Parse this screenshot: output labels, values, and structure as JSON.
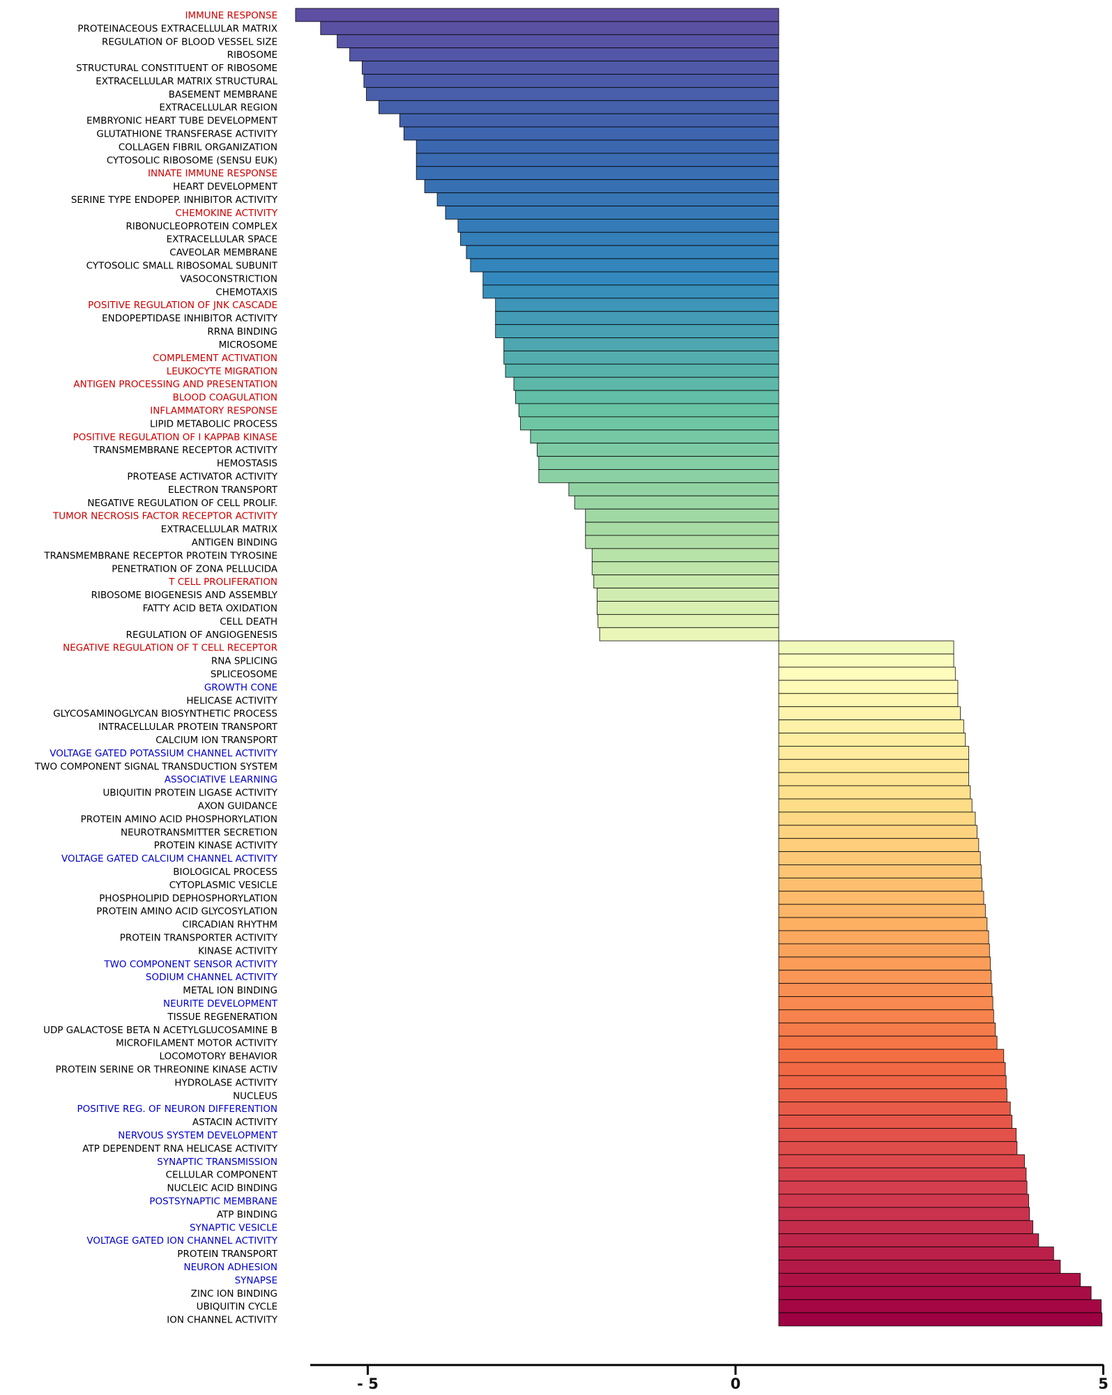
{
  "chart_data": {
    "type": "bar",
    "orientation": "horizontal",
    "xlim": [
      -5.6,
      5
    ],
    "xticks": [
      -5,
      0,
      5
    ],
    "xtick_labels": [
      "- 5",
      "0",
      "5"
    ],
    "title": "",
    "xlabel": "",
    "ylabel": "",
    "grid": false,
    "label_colors": {
      "default": "#000000",
      "immune": "#cc0000",
      "neuro": "#0000cc"
    },
    "categories": [
      {
        "label": "IMMUNE RESPONSE",
        "value": -5.8,
        "group": "immune"
      },
      {
        "label": "PROTEINACEOUS EXTRACELLULAR MATRIX",
        "value": -5.5,
        "group": "default"
      },
      {
        "label": "REGULATION OF BLOOD VESSEL SIZE",
        "value": -5.3,
        "group": "default"
      },
      {
        "label": "RIBOSOME",
        "value": -5.15,
        "group": "default"
      },
      {
        "label": "STRUCTURAL CONSTITUENT OF RIBOSOME",
        "value": -5.0,
        "group": "default"
      },
      {
        "label": "EXTRACELLULAR MATRIX STRUCTURAL",
        "value": -4.98,
        "group": "default"
      },
      {
        "label": "BASEMENT MEMBRANE",
        "value": -4.95,
        "group": "default"
      },
      {
        "label": "EXTRACELLULAR REGION",
        "value": -4.8,
        "group": "default"
      },
      {
        "label": "EMBRYONIC HEART TUBE DEVELOPMENT",
        "value": -4.55,
        "group": "default"
      },
      {
        "label": "GLUTATHIONE TRANSFERASE ACTIVITY",
        "value": -4.5,
        "group": "default"
      },
      {
        "label": "COLLAGEN FIBRIL ORGANIZATION",
        "value": -4.35,
        "group": "default"
      },
      {
        "label": "CYTOSOLIC RIBOSOME (SENSU EUK)",
        "value": -4.35,
        "group": "default"
      },
      {
        "label": "INNATE IMMUNE RESPONSE",
        "value": -4.35,
        "group": "immune"
      },
      {
        "label": "HEART DEVELOPMENT",
        "value": -4.25,
        "group": "default"
      },
      {
        "label": "SERINE TYPE ENDOPEP. INHIBITOR ACTIVITY",
        "value": -4.1,
        "group": "default"
      },
      {
        "label": "CHEMOKINE ACTIVITY",
        "value": -4.0,
        "group": "immune"
      },
      {
        "label": "RIBONUCLEOPROTEIN COMPLEX",
        "value": -3.85,
        "group": "default"
      },
      {
        "label": "EXTRACELLULAR SPACE",
        "value": -3.82,
        "group": "default"
      },
      {
        "label": "CAVEOLAR MEMBRANE",
        "value": -3.75,
        "group": "default"
      },
      {
        "label": "CYTOSOLIC SMALL RIBOSOMAL SUBUNIT",
        "value": -3.7,
        "group": "default"
      },
      {
        "label": "VASOCONSTRICTION",
        "value": -3.55,
        "group": "default"
      },
      {
        "label": "CHEMOTAXIS",
        "value": -3.55,
        "group": "default"
      },
      {
        "label": "POSITIVE REGULATION OF JNK CASCADE",
        "value": -3.4,
        "group": "immune"
      },
      {
        "label": "ENDOPEPTIDASE INHIBITOR ACTIVITY",
        "value": -3.4,
        "group": "default"
      },
      {
        "label": "RRNA BINDING",
        "value": -3.4,
        "group": "default"
      },
      {
        "label": "MICROSOME",
        "value": -3.3,
        "group": "default"
      },
      {
        "label": "COMPLEMENT ACTIVATION",
        "value": -3.3,
        "group": "immune"
      },
      {
        "label": "LEUKOCYTE MIGRATION",
        "value": -3.28,
        "group": "immune"
      },
      {
        "label": "ANTIGEN PROCESSING AND PRESENTATION",
        "value": -3.18,
        "group": "immune"
      },
      {
        "label": "BLOOD COAGULATION",
        "value": -3.16,
        "group": "immune"
      },
      {
        "label": "INFLAMMATORY RESPONSE",
        "value": -3.12,
        "group": "immune"
      },
      {
        "label": "LIPID METABOLIC PROCESS",
        "value": -3.1,
        "group": "default"
      },
      {
        "label": "POSITIVE REGULATION OF I KAPPAB KINASE",
        "value": -2.98,
        "group": "immune"
      },
      {
        "label": "TRANSMEMBRANE RECEPTOR ACTIVITY",
        "value": -2.9,
        "group": "default"
      },
      {
        "label": "HEMOSTASIS",
        "value": -2.88,
        "group": "default"
      },
      {
        "label": "PROTEASE ACTIVATOR ACTIVITY",
        "value": -2.88,
        "group": "default"
      },
      {
        "label": "ELECTRON TRANSPORT",
        "value": -2.52,
        "group": "default"
      },
      {
        "label": "NEGATIVE REGULATION OF CELL PROLIF.",
        "value": -2.45,
        "group": "default"
      },
      {
        "label": "TUMOR NECROSIS FACTOR RECEPTOR ACTIVITY",
        "value": -2.32,
        "group": "immune"
      },
      {
        "label": "EXTRACELLULAR MATRIX",
        "value": -2.32,
        "group": "default"
      },
      {
        "label": "ANTIGEN BINDING",
        "value": -2.32,
        "group": "default"
      },
      {
        "label": "TRANSMEMBRANE RECEPTOR PROTEIN TYROSINE",
        "value": -2.24,
        "group": "default"
      },
      {
        "label": "PENETRATION OF ZONA PELLUCIDA",
        "value": -2.24,
        "group": "default"
      },
      {
        "label": "T CELL PROLIFERATION",
        "value": -2.22,
        "group": "immune"
      },
      {
        "label": "RIBOSOME BIOGENESIS AND ASSEMBLY",
        "value": -2.18,
        "group": "default"
      },
      {
        "label": "FATTY ACID BETA OXIDATION",
        "value": -2.18,
        "group": "default"
      },
      {
        "label": "CELL DEATH",
        "value": -2.17,
        "group": "default"
      },
      {
        "label": "REGULATION OF ANGIOGENESIS",
        "value": -2.15,
        "group": "default"
      },
      {
        "label": "NEGATIVE REGULATION OF T CELL RECEPTOR",
        "value": 2.1,
        "group": "immune"
      },
      {
        "label": "RNA SPLICING",
        "value": 2.1,
        "group": "default"
      },
      {
        "label": "SPLICEOSOME",
        "value": 2.12,
        "group": "default"
      },
      {
        "label": "GROWTH CONE",
        "value": 2.15,
        "group": "neuro"
      },
      {
        "label": "HELICASE ACTIVITY",
        "value": 2.15,
        "group": "default"
      },
      {
        "label": "GLYCOSAMINOGLYCAN BIOSYNTHETIC PROCESS",
        "value": 2.18,
        "group": "default"
      },
      {
        "label": "INTRACELLULAR PROTEIN TRANSPORT",
        "value": 2.22,
        "group": "default"
      },
      {
        "label": "CALCIUM ION TRANSPORT",
        "value": 2.24,
        "group": "default"
      },
      {
        "label": "VOLTAGE GATED POTASSIUM CHANNEL ACTIVITY",
        "value": 2.28,
        "group": "neuro"
      },
      {
        "label": "TWO COMPONENT SIGNAL TRANSDUCTION SYSTEM",
        "value": 2.28,
        "group": "default"
      },
      {
        "label": "ASSOCIATIVE LEARNING",
        "value": 2.28,
        "group": "neuro"
      },
      {
        "label": "UBIQUITIN PROTEIN LIGASE ACTIVITY",
        "value": 2.3,
        "group": "default"
      },
      {
        "label": "AXON GUIDANCE",
        "value": 2.32,
        "group": "default"
      },
      {
        "label": "PROTEIN AMINO ACID PHOSPHORYLATION",
        "value": 2.36,
        "group": "default"
      },
      {
        "label": "NEUROTRANSMITTER SECRETION",
        "value": 2.38,
        "group": "default"
      },
      {
        "label": "PROTEIN KINASE ACTIVITY",
        "value": 2.4,
        "group": "default"
      },
      {
        "label": "VOLTAGE GATED CALCIUM CHANNEL ACTIVITY",
        "value": 2.42,
        "group": "neuro"
      },
      {
        "label": "BIOLOGICAL PROCESS",
        "value": 2.43,
        "group": "default"
      },
      {
        "label": "CYTOPLASMIC VESICLE",
        "value": 2.44,
        "group": "default"
      },
      {
        "label": "PHOSPHOLIPID DEPHOSPHORYLATION",
        "value": 2.46,
        "group": "default"
      },
      {
        "label": "PROTEIN AMINO ACID GLYCOSYLATION",
        "value": 2.48,
        "group": "default"
      },
      {
        "label": "CIRCADIAN RHYTHM",
        "value": 2.5,
        "group": "default"
      },
      {
        "label": "PROTEIN TRANSPORTER ACTIVITY",
        "value": 2.52,
        "group": "default"
      },
      {
        "label": "KINASE ACTIVITY",
        "value": 2.53,
        "group": "default"
      },
      {
        "label": "TWO COMPONENT SENSOR ACTIVITY",
        "value": 2.54,
        "group": "neuro"
      },
      {
        "label": "SODIUM CHANNEL ACTIVITY",
        "value": 2.55,
        "group": "neuro"
      },
      {
        "label": "METAL ION BINDING",
        "value": 2.56,
        "group": "default"
      },
      {
        "label": "NEURITE DEVELOPMENT",
        "value": 2.57,
        "group": "neuro"
      },
      {
        "label": "TISSUE REGENERATION",
        "value": 2.58,
        "group": "default"
      },
      {
        "label": "UDP GALACTOSE BETA N ACETYLGLUCOSAMINE B",
        "value": 2.6,
        "group": "default"
      },
      {
        "label": "MICROFILAMENT MOTOR ACTIVITY",
        "value": 2.62,
        "group": "default"
      },
      {
        "label": "LOCOMOTORY BEHAVIOR",
        "value": 2.7,
        "group": "default"
      },
      {
        "label": "PROTEIN SERINE OR THREONINE KINASE ACTIV",
        "value": 2.72,
        "group": "default"
      },
      {
        "label": "HYDROLASE ACTIVITY",
        "value": 2.73,
        "group": "default"
      },
      {
        "label": "NUCLEUS",
        "value": 2.74,
        "group": "default"
      },
      {
        "label": "POSITIVE REG. OF NEURON DIFFERENTION",
        "value": 2.78,
        "group": "neuro"
      },
      {
        "label": "ASTACIN ACTIVITY",
        "value": 2.8,
        "group": "default"
      },
      {
        "label": "NERVOUS SYSTEM DEVELOPMENT",
        "value": 2.85,
        "group": "neuro"
      },
      {
        "label": "ATP DEPENDENT RNA HELICASE ACTIVITY",
        "value": 2.86,
        "group": "default"
      },
      {
        "label": "SYNAPTIC TRANSMISSION",
        "value": 2.95,
        "group": "neuro"
      },
      {
        "label": "CELLULAR COMPONENT",
        "value": 2.97,
        "group": "default"
      },
      {
        "label": "NUCLEIC ACID BINDING",
        "value": 2.98,
        "group": "default"
      },
      {
        "label": "POSTSYNAPTIC MEMBRANE",
        "value": 3.0,
        "group": "neuro"
      },
      {
        "label": "ATP BINDING",
        "value": 3.01,
        "group": "default"
      },
      {
        "label": "SYNAPTIC VESICLE",
        "value": 3.05,
        "group": "neuro"
      },
      {
        "label": "VOLTAGE GATED ION CHANNEL ACTIVITY",
        "value": 3.12,
        "group": "neuro"
      },
      {
        "label": "PROTEIN TRANSPORT",
        "value": 3.3,
        "group": "default"
      },
      {
        "label": "NEURON ADHESION",
        "value": 3.38,
        "group": "neuro"
      },
      {
        "label": "SYNAPSE",
        "value": 3.62,
        "group": "neuro"
      },
      {
        "label": "ZINC ION BINDING",
        "value": 3.75,
        "group": "default"
      },
      {
        "label": "UBIQUITIN CYCLE",
        "value": 3.87,
        "group": "default"
      },
      {
        "label": "ION CHANNEL ACTIVITY",
        "value": 3.88,
        "group": "default"
      }
    ]
  }
}
